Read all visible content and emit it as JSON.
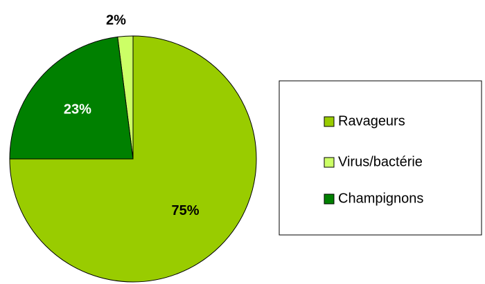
{
  "chart_data": {
    "type": "pie",
    "categories": [
      "Ravageurs",
      "Virus/bactérie",
      "Champignons"
    ],
    "values": [
      75,
      2,
      23
    ],
    "value_labels": [
      "75%",
      "2%",
      "23%"
    ],
    "colors": [
      "#99cc00",
      "#ccff66",
      "#008000"
    ],
    "legend": "right"
  }
}
